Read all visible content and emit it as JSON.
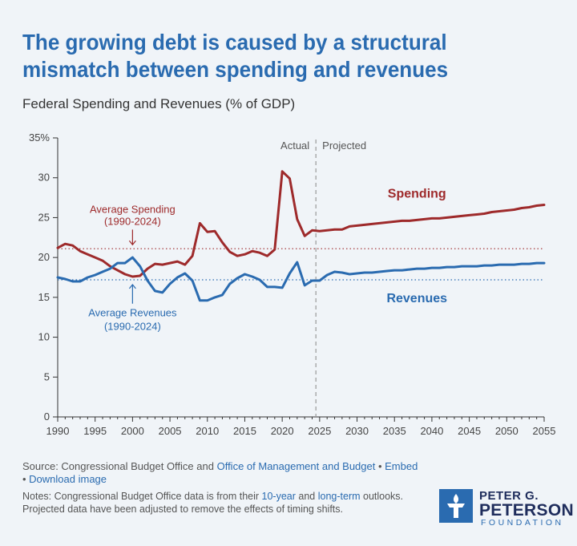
{
  "header": {
    "title": "The growing debt is caused by a structural mismatch between spending and revenues",
    "subtitle": "Federal Spending and Revenues (% of GDP)"
  },
  "chart_data": {
    "type": "line",
    "x_range": [
      1990,
      2055
    ],
    "ylim": [
      0,
      35
    ],
    "y_ticks": [
      0,
      5,
      10,
      15,
      20,
      25,
      30,
      35
    ],
    "y_tick_labels": [
      "0",
      "5",
      "10",
      "15",
      "20",
      "25",
      "30",
      "35%"
    ],
    "x_ticks": [
      1990,
      1995,
      2000,
      2005,
      2010,
      2015,
      2020,
      2025,
      2030,
      2035,
      2040,
      2045,
      2050,
      2055
    ],
    "grid": false,
    "divider": {
      "x": 2024.5,
      "left_label": "Actual",
      "right_label": "Projected"
    },
    "series": [
      {
        "name": "Spending",
        "color": "#9e2a2b",
        "x": [
          1990,
          1991,
          1992,
          1993,
          1994,
          1995,
          1996,
          1997,
          1998,
          1999,
          2000,
          2001,
          2002,
          2003,
          2004,
          2005,
          2006,
          2007,
          2008,
          2009,
          2010,
          2011,
          2012,
          2013,
          2014,
          2015,
          2016,
          2017,
          2018,
          2019,
          2020,
          2021,
          2022,
          2023,
          2024,
          2025,
          2026,
          2027,
          2028,
          2029,
          2030,
          2031,
          2032,
          2033,
          2034,
          2035,
          2036,
          2037,
          2038,
          2039,
          2040,
          2041,
          2042,
          2043,
          2044,
          2045,
          2046,
          2047,
          2048,
          2049,
          2050,
          2051,
          2052,
          2053,
          2054,
          2055
        ],
        "values": [
          21.2,
          21.7,
          21.5,
          20.8,
          20.4,
          20.0,
          19.6,
          18.9,
          18.4,
          17.9,
          17.6,
          17.7,
          18.6,
          19.2,
          19.1,
          19.3,
          19.5,
          19.1,
          20.2,
          24.3,
          23.2,
          23.3,
          21.9,
          20.7,
          20.2,
          20.4,
          20.8,
          20.6,
          20.2,
          21.0,
          30.8,
          29.9,
          24.8,
          22.7,
          23.4,
          23.3,
          23.4,
          23.5,
          23.5,
          23.9,
          24.0,
          24.1,
          24.2,
          24.3,
          24.4,
          24.5,
          24.6,
          24.6,
          24.7,
          24.8,
          24.9,
          24.9,
          25.0,
          25.1,
          25.2,
          25.3,
          25.4,
          25.5,
          25.7,
          25.8,
          25.9,
          26.0,
          26.2,
          26.3,
          26.5,
          26.6
        ]
      },
      {
        "name": "Revenues",
        "color": "#2a6bb0",
        "x": [
          1990,
          1991,
          1992,
          1993,
          1994,
          1995,
          1996,
          1997,
          1998,
          1999,
          2000,
          2001,
          2002,
          2003,
          2004,
          2005,
          2006,
          2007,
          2008,
          2009,
          2010,
          2011,
          2012,
          2013,
          2014,
          2015,
          2016,
          2017,
          2018,
          2019,
          2020,
          2021,
          2022,
          2023,
          2024,
          2025,
          2026,
          2027,
          2028,
          2029,
          2030,
          2031,
          2032,
          2033,
          2034,
          2035,
          2036,
          2037,
          2038,
          2039,
          2040,
          2041,
          2042,
          2043,
          2044,
          2045,
          2046,
          2047,
          2048,
          2049,
          2050,
          2051,
          2052,
          2053,
          2054,
          2055
        ],
        "values": [
          17.5,
          17.3,
          17.0,
          17.0,
          17.5,
          17.8,
          18.2,
          18.6,
          19.3,
          19.3,
          20.0,
          18.9,
          17.1,
          15.8,
          15.6,
          16.7,
          17.5,
          18.0,
          17.1,
          14.6,
          14.6,
          15.0,
          15.3,
          16.7,
          17.4,
          17.9,
          17.6,
          17.2,
          16.3,
          16.3,
          16.2,
          18.0,
          19.4,
          16.5,
          17.1,
          17.1,
          17.8,
          18.2,
          18.1,
          17.9,
          18.0,
          18.1,
          18.1,
          18.2,
          18.3,
          18.4,
          18.4,
          18.5,
          18.6,
          18.6,
          18.7,
          18.7,
          18.8,
          18.8,
          18.9,
          18.9,
          18.9,
          19.0,
          19.0,
          19.1,
          19.1,
          19.1,
          19.2,
          19.2,
          19.3,
          19.3
        ]
      }
    ],
    "averages": [
      {
        "key": "spending",
        "value": 21.1,
        "color": "#9e2a2b",
        "label_line1": "Average Spending",
        "label_line2": "(1990-2024)"
      },
      {
        "key": "revenues",
        "value": 17.2,
        "color": "#2a6bb0",
        "label_line1": "Average Revenues",
        "label_line2": "(1990-2024)"
      }
    ],
    "series_labels": [
      {
        "text": "Spending",
        "color": "#9e2a2b"
      },
      {
        "text": "Revenues",
        "color": "#2a6bb0"
      }
    ]
  },
  "footer": {
    "source_prefix": "Source: Congressional Budget Office and ",
    "source_link": "Office of Management and Budget",
    "sep1": " • ",
    "embed": "Embed",
    "sep2": " • ",
    "download": "Download image",
    "notes_prefix": "Notes: Congressional Budget Office data is from their ",
    "notes_link1": "10-year",
    "notes_mid": " and ",
    "notes_link2": "long-term",
    "notes_suffix": " outlooks. Projected data have been adjusted to remove the effects of timing shifts."
  },
  "logo": {
    "line1": "PETER G.",
    "line2": "PETERSON",
    "line3": "FOUNDATION",
    "icon": "torch-icon"
  }
}
